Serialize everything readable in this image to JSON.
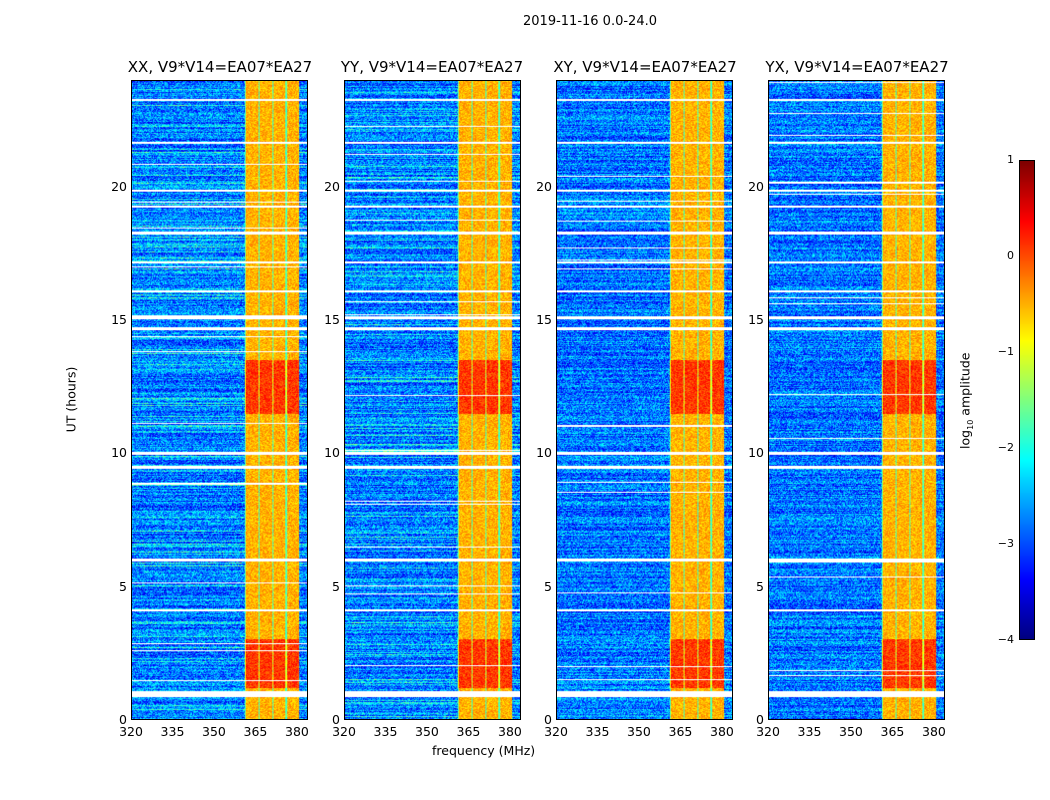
{
  "figure_title": "2019-11-16 0.0-24.0",
  "chart_data": {
    "type": "heatmap",
    "title": "2019-11-16 0.0-24.0",
    "xlabel": "frequency (MHz)",
    "ylabel": "UT (hours)",
    "xlim": [
      320,
      384
    ],
    "ylim": [
      0,
      24
    ],
    "xticks": [
      "320",
      "335",
      "350",
      "365",
      "380"
    ],
    "yticks": [
      "0",
      "5",
      "10",
      "15",
      "20"
    ],
    "panels": [
      {
        "title": "XX, V9*V14=EA07*EA27"
      },
      {
        "title": "YY, V9*V14=EA07*EA27"
      },
      {
        "title": "XY, V9*V14=EA07*EA27"
      },
      {
        "title": "YX, V9*V14=EA07*EA27"
      }
    ],
    "colorbar": {
      "label_prefix": "log",
      "label_sub": "10",
      "label_suffix": " amplitude",
      "colormap": "jet",
      "range": [
        -4,
        1
      ],
      "ticks": [
        "1",
        "0",
        "−1",
        "−2",
        "−3",
        "−4"
      ]
    },
    "features": {
      "background_log_amp": -2.8,
      "rfi_band_mhz": [
        361,
        381
      ],
      "rfi_band_log_amp": -0.5,
      "strong_periods_hours": [
        [
          11.5,
          13.5
        ],
        [
          1.2,
          3.0
        ]
      ],
      "flagged_gap_hours": [
        0.9,
        1.0,
        4.1,
        6.0,
        9.5,
        10.0,
        14.7,
        15.1,
        16.1,
        17.2,
        18.3,
        19.3,
        19.9,
        21.7,
        23.3
      ]
    }
  }
}
